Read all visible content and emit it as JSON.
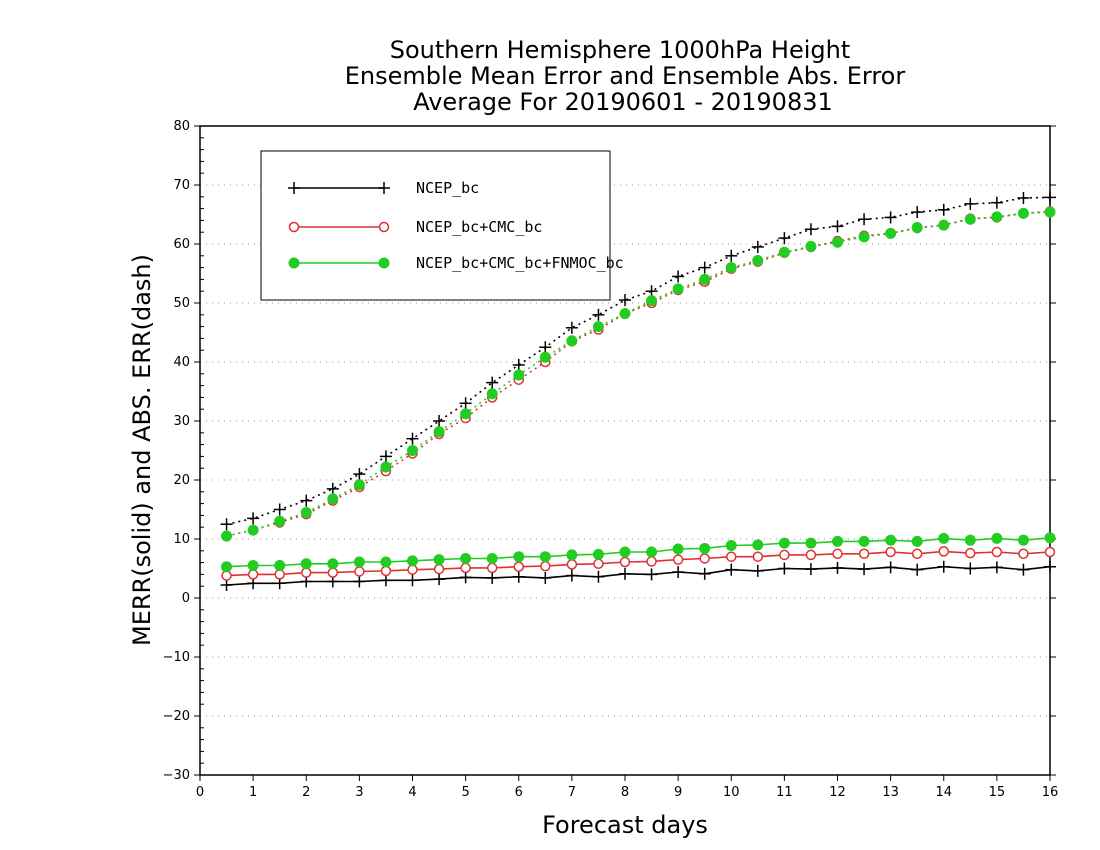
{
  "chart_data": {
    "type": "line",
    "title_lines": [
      "Southern Hemisphere 1000hPa Height",
      "Ensemble Mean Error and Ensemble Abs. Error",
      "Average For 20190601 - 20190831"
    ],
    "xlabel": "Forecast days",
    "ylabel": "MERR(solid) and ABS. ERR(dash)",
    "xlim": [
      0,
      16
    ],
    "ylim": [
      -30,
      80
    ],
    "xticks": [
      "0",
      "1",
      "2",
      "3",
      "4",
      "5",
      "6",
      "7",
      "8",
      "9",
      "10",
      "11",
      "12",
      "13",
      "14",
      "15",
      "16"
    ],
    "yticks": [
      "80",
      "70",
      "60",
      "50",
      "40",
      "30",
      "20",
      "10",
      "0",
      "−10",
      "−20",
      "−30"
    ],
    "grid": "horizontal-dotted",
    "legend_position": "top-left",
    "x": [
      0.5,
      1,
      1.5,
      2,
      2.5,
      3,
      3.5,
      4,
      4.5,
      5,
      5.5,
      6,
      6.5,
      7,
      7.5,
      8,
      8.5,
      9,
      9.5,
      10,
      10.5,
      11,
      11.5,
      12,
      12.5,
      13,
      13.5,
      14,
      14.5,
      15,
      15.5,
      16
    ],
    "series": [
      {
        "name": "NCEP_bc",
        "color": "#000000",
        "marker": "plus",
        "mean_error": [
          2.2,
          2.5,
          2.5,
          2.8,
          2.8,
          2.8,
          3.0,
          3.0,
          3.2,
          3.5,
          3.4,
          3.6,
          3.4,
          3.8,
          3.6,
          4.1,
          4.0,
          4.4,
          4.1,
          4.8,
          4.6,
          5.0,
          4.9,
          5.1,
          4.9,
          5.2,
          4.8,
          5.3,
          5.0,
          5.2,
          4.8,
          5.3
        ],
        "abs_error": [
          12.5,
          13.5,
          15.0,
          16.5,
          18.5,
          21.0,
          24.0,
          27.0,
          30.0,
          33.0,
          36.5,
          39.5,
          42.5,
          45.8,
          48.0,
          50.5,
          52.0,
          54.5,
          56.0,
          58.0,
          59.5,
          61.0,
          62.5,
          63.0,
          64.2,
          64.5,
          65.4,
          65.8,
          66.8,
          67.0,
          67.8,
          67.9
        ]
      },
      {
        "name": "NCEP_bc+CMC_bc",
        "color": "#e03030",
        "marker": "open-circle",
        "mean_error": [
          3.8,
          4.0,
          4.0,
          4.3,
          4.3,
          4.5,
          4.6,
          4.8,
          4.9,
          5.1,
          5.1,
          5.3,
          5.4,
          5.7,
          5.8,
          6.1,
          6.2,
          6.5,
          6.7,
          7.0,
          7.0,
          7.3,
          7.3,
          7.5,
          7.5,
          7.8,
          7.5,
          7.9,
          7.6,
          7.8,
          7.5,
          7.8
        ],
        "abs_error": [
          10.5,
          11.5,
          12.8,
          14.2,
          16.5,
          18.8,
          21.5,
          24.5,
          27.8,
          30.5,
          34.0,
          37.0,
          40.0,
          43.5,
          45.5,
          48.2,
          50.0,
          52.2,
          53.6,
          55.8,
          57.0,
          58.5,
          59.5,
          60.5,
          61.4,
          61.8,
          62.7,
          63.2,
          64.3,
          64.5,
          65.2,
          65.5
        ]
      },
      {
        "name": "NCEP_bc+CMC_bc+FNMOC_bc",
        "color": "#22cc22",
        "marker": "filled-circle",
        "mean_error": [
          5.3,
          5.5,
          5.5,
          5.8,
          5.8,
          6.1,
          6.1,
          6.3,
          6.5,
          6.7,
          6.7,
          7.0,
          7.0,
          7.3,
          7.4,
          7.8,
          7.8,
          8.3,
          8.4,
          8.9,
          9.0,
          9.3,
          9.3,
          9.6,
          9.6,
          9.8,
          9.6,
          10.1,
          9.8,
          10.1,
          9.8,
          10.2
        ],
        "abs_error": [
          10.5,
          11.5,
          13.0,
          14.5,
          16.8,
          19.2,
          22.2,
          25.0,
          28.2,
          31.2,
          34.6,
          37.8,
          40.8,
          43.6,
          46.0,
          48.2,
          50.4,
          52.4,
          54.0,
          56.0,
          57.2,
          58.6,
          59.6,
          60.3,
          61.2,
          61.8,
          62.8,
          63.2,
          64.2,
          64.6,
          65.2,
          65.4
        ]
      }
    ]
  }
}
